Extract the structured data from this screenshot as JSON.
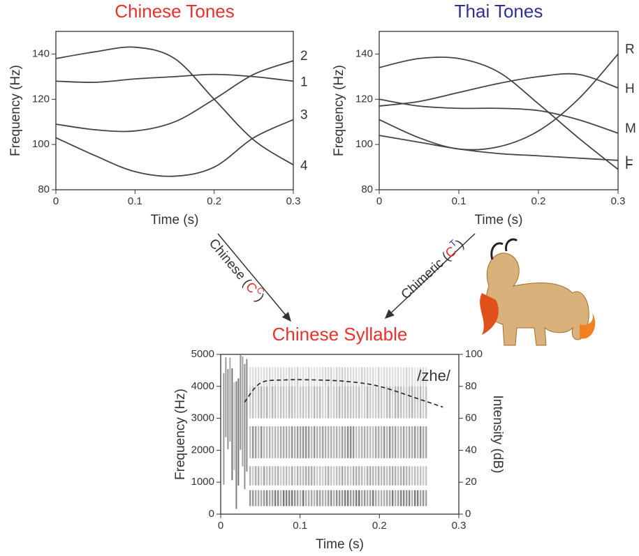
{
  "chart_data": [
    {
      "type": "line",
      "title": "Chinese Tones",
      "title_color": "#e8312f",
      "xlabel": "Time (s)",
      "ylabel": "Frequency (Hz)",
      "xlim": [
        0,
        0.3
      ],
      "ylim": [
        80,
        150
      ],
      "xticks": [
        0,
        0.1,
        0.2,
        0.3
      ],
      "yticks": [
        80,
        100,
        120,
        140
      ],
      "x": [
        0,
        0.05,
        0.1,
        0.15,
        0.2,
        0.25,
        0.3
      ],
      "series": [
        {
          "name": "2",
          "color": "#444444",
          "values": [
            109,
            106.5,
            106,
            110,
            120,
            131,
            137
          ]
        },
        {
          "name": "1",
          "color": "#444444",
          "values": [
            128,
            127.5,
            129,
            130,
            131,
            130,
            128
          ]
        },
        {
          "name": "3",
          "color": "#444444",
          "values": [
            103,
            95,
            88,
            86,
            90,
            103,
            111
          ]
        },
        {
          "name": "4",
          "color": "#444444",
          "values": [
            138,
            141,
            143,
            138,
            120,
            102,
            91
          ]
        }
      ]
    },
    {
      "type": "line",
      "title": "Thai Tones",
      "title_color": "#2e3192",
      "xlabel": "Time (s)",
      "ylabel": "Frequency (Hz)",
      "xlim": [
        0,
        0.3
      ],
      "ylim": [
        80,
        150
      ],
      "xticks": [
        0,
        0.1,
        0.2,
        0.3
      ],
      "yticks": [
        80,
        100,
        120,
        140
      ],
      "x": [
        0,
        0.05,
        0.1,
        0.15,
        0.2,
        0.25,
        0.3
      ],
      "series": [
        {
          "name": "R",
          "color": "#444444",
          "values": [
            111,
            103,
            98,
            99,
            106,
            120,
            140
          ]
        },
        {
          "name": "H",
          "color": "#444444",
          "values": [
            117,
            119,
            123,
            127,
            130,
            131,
            125
          ]
        },
        {
          "name": "M",
          "color": "#444444",
          "values": [
            120,
            117,
            116,
            116,
            115,
            111,
            105
          ]
        },
        {
          "name": "L",
          "color": "#444444",
          "values": [
            104,
            101,
            98,
            96,
            95,
            94,
            93
          ]
        },
        {
          "name": "F",
          "color": "#444444",
          "values": [
            134,
            138,
            138,
            132,
            118,
            103,
            89
          ]
        }
      ]
    },
    {
      "type": "spectrogram",
      "title": "Chinese Syllable",
      "title_color": "#e8312f",
      "xlabel": "Time (s)",
      "ylabel": "Frequency (Hz)",
      "y2label": "Intensity (dB)",
      "annotation": "/zhe/",
      "xlim": [
        0,
        0.3
      ],
      "ylim": [
        0,
        5000
      ],
      "y2lim": [
        0,
        100
      ],
      "xticks": [
        0,
        0.1,
        0.2,
        0.3
      ],
      "yticks": [
        0,
        1000,
        2000,
        3000,
        4000,
        5000
      ],
      "y2ticks": [
        0,
        20,
        40,
        60,
        80,
        100
      ],
      "x": [
        0.03,
        0.05,
        0.08,
        0.12,
        0.16,
        0.2,
        0.25,
        0.28
      ],
      "series": [
        {
          "color": "#222222",
          "axis": "y2",
          "values": [
            70,
            82,
            84,
            84,
            83,
            80,
            72,
            67
          ]
        }
      ]
    }
  ],
  "arrows": [
    {
      "text": "Chinese (",
      "letter": "C",
      "superscript": "C",
      "close": ")"
    },
    {
      "text": "Chimeric (",
      "letter": "C",
      "superscript": "T",
      "close": ")"
    }
  ]
}
